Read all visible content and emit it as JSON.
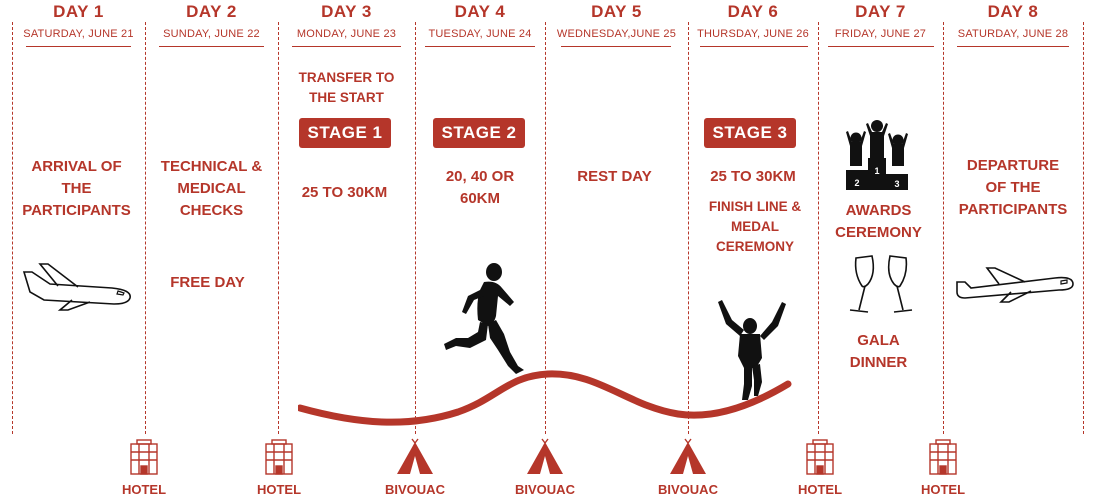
{
  "days": [
    {
      "title": "DAY 1",
      "date": "SATURDAY, JUNE 21",
      "text": "ARRIVAL OF\nTHE\nPARTICIPANTS"
    },
    {
      "title": "DAY 2",
      "date": "SUNDAY, JUNE 22",
      "text": "TECHNICAL &\nMEDICAL\nCHECKS",
      "text2": "FREE DAY"
    },
    {
      "title": "DAY 3",
      "date": "MONDAY, JUNE 23",
      "pre": "TRANSFER TO\nTHE START",
      "stage": "STAGE 1",
      "text": "25 TO 30KM"
    },
    {
      "title": "DAY 4",
      "date": "TUESDAY, JUNE 24",
      "stage": "STAGE 2",
      "text": "20, 40 OR\n60KM"
    },
    {
      "title": "DAY 5",
      "date": "WEDNESDAY,JUNE 25",
      "text": "REST DAY"
    },
    {
      "title": "DAY 6",
      "date": "THURSDAY, JUNE 26",
      "stage": "STAGE 3",
      "text": "25 TO 30KM",
      "text2": "FINISH LINE &\nMEDAL\nCEREMONY"
    },
    {
      "title": "DAY 7",
      "date": "FRIDAY, JUNE 27",
      "text": "AWARDS\nCEREMONY",
      "text2": "GALA\nDINNER"
    },
    {
      "title": "DAY 8",
      "date": "SATURDAY, JUNE 28",
      "text": "DEPARTURE\nOF THE\nPARTICIPANTS"
    }
  ],
  "footer": [
    {
      "label": "HOTEL",
      "icon": "hotel-icon"
    },
    {
      "label": "HOTEL",
      "icon": "hotel-icon"
    },
    {
      "label": "BIVOUAC",
      "icon": "tent-icon"
    },
    {
      "label": "BIVOUAC",
      "icon": "tent-icon"
    },
    {
      "label": "BIVOUAC",
      "icon": "tent-icon"
    },
    {
      "label": "HOTEL",
      "icon": "hotel-icon"
    },
    {
      "label": "HOTEL",
      "icon": "hotel-icon"
    }
  ],
  "colors": {
    "accent": "#b5362a",
    "ink": "#111111"
  }
}
